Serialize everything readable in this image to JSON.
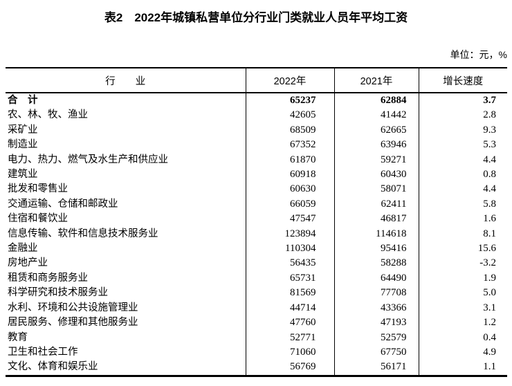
{
  "page": {
    "title": "表2　2022年城镇私营单位分行业门类就业人员年平均工资",
    "unit_note": "单位：元，%"
  },
  "table": {
    "headers": {
      "industry": "行　　业",
      "y2022": "2022年",
      "y2021": "2021年",
      "growth": "增长速度"
    },
    "rows": [
      {
        "industry": "合　计",
        "y2022": "65237",
        "y2021": "62884",
        "growth": "3.7",
        "bold": true
      },
      {
        "industry": "农、林、牧、渔业",
        "y2022": "42605",
        "y2021": "41442",
        "growth": "2.8",
        "bold": false
      },
      {
        "industry": "采矿业",
        "y2022": "68509",
        "y2021": "62665",
        "growth": "9.3",
        "bold": false
      },
      {
        "industry": "制造业",
        "y2022": "67352",
        "y2021": "63946",
        "growth": "5.3",
        "bold": false
      },
      {
        "industry": "电力、热力、燃气及水生产和供应业",
        "y2022": "61870",
        "y2021": "59271",
        "growth": "4.4",
        "bold": false
      },
      {
        "industry": "建筑业",
        "y2022": "60918",
        "y2021": "60430",
        "growth": "0.8",
        "bold": false
      },
      {
        "industry": "批发和零售业",
        "y2022": "60630",
        "y2021": "58071",
        "growth": "4.4",
        "bold": false
      },
      {
        "industry": "交通运输、仓储和邮政业",
        "y2022": "66059",
        "y2021": "62411",
        "growth": "5.8",
        "bold": false
      },
      {
        "industry": "住宿和餐饮业",
        "y2022": "47547",
        "y2021": "46817",
        "growth": "1.6",
        "bold": false
      },
      {
        "industry": "信息传输、软件和信息技术服务业",
        "y2022": "123894",
        "y2021": "114618",
        "growth": "8.1",
        "bold": false
      },
      {
        "industry": "金融业",
        "y2022": "110304",
        "y2021": "95416",
        "growth": "15.6",
        "bold": false
      },
      {
        "industry": "房地产业",
        "y2022": "56435",
        "y2021": "58288",
        "growth": "-3.2",
        "bold": false
      },
      {
        "industry": "租赁和商务服务业",
        "y2022": "65731",
        "y2021": "64490",
        "growth": "1.9",
        "bold": false
      },
      {
        "industry": "科学研究和技术服务业",
        "y2022": "81569",
        "y2021": "77708",
        "growth": "5.0",
        "bold": false
      },
      {
        "industry": "水利、环境和公共设施管理业",
        "y2022": "44714",
        "y2021": "43366",
        "growth": "3.1",
        "bold": false
      },
      {
        "industry": "居民服务、修理和其他服务业",
        "y2022": "47760",
        "y2021": "47193",
        "growth": "1.2",
        "bold": false
      },
      {
        "industry": "教育",
        "y2022": "52771",
        "y2021": "52579",
        "growth": "0.4",
        "bold": false
      },
      {
        "industry": "卫生和社会工作",
        "y2022": "71060",
        "y2021": "67750",
        "growth": "4.9",
        "bold": false
      },
      {
        "industry": "文化、体育和娱乐业",
        "y2022": "56769",
        "y2021": "56171",
        "growth": "1.1",
        "bold": false
      }
    ]
  }
}
